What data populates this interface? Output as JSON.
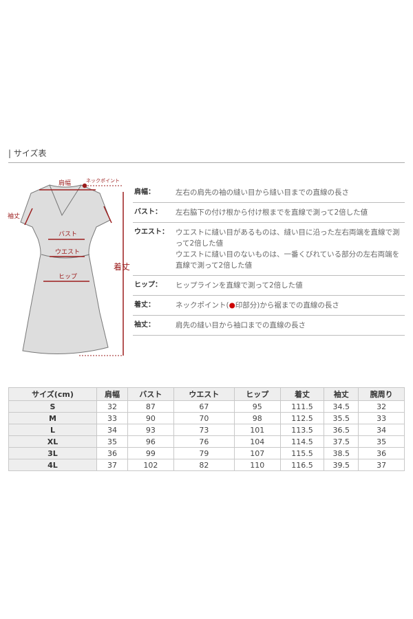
{
  "title": "| サイズ表",
  "diagram": {
    "shoulder": "肩幅",
    "neck_point": "ネックポイント",
    "sleeve": "袖丈",
    "bust": "バスト",
    "waist": "ウエスト",
    "hip": "ヒップ",
    "length": "着丈",
    "accent": "#9b1c1c"
  },
  "definitions": [
    {
      "key": "肩幅：",
      "value": "左右の肩先の袖の縫い目から縫い目までの直線の長さ"
    },
    {
      "key": "バスト：",
      "value": "左右脇下の付け根から付け根までを直線で測って2倍した値"
    },
    {
      "key": "ウエスト：",
      "value": "ウエストに縫い目があるものは、縫い目に沿った左右両端を直線で測って2倍した値",
      "value2": "ウエストに縫い目のないものは、一番くびれている部分の左右両端を直線で測って2倍した値"
    },
    {
      "key": "ヒップ：",
      "value": "ヒップラインを直線で測って2倍した値"
    },
    {
      "key": "着丈：",
      "value_a": "ネックポイント(",
      "value_b": "印部分)から裾までの直線の長さ"
    },
    {
      "key": "袖丈：",
      "value": "肩先の縫い目から袖口までの直線の長さ"
    }
  ],
  "table": {
    "headers": [
      "サイズ(cm)",
      "肩幅",
      "バスト",
      "ウエスト",
      "ヒップ",
      "着丈",
      "袖丈",
      "腕周り"
    ],
    "rows": [
      [
        "S",
        "32",
        "87",
        "67",
        "95",
        "111.5",
        "34.5",
        "32"
      ],
      [
        "M",
        "33",
        "90",
        "70",
        "98",
        "112.5",
        "35.5",
        "33"
      ],
      [
        "L",
        "34",
        "93",
        "73",
        "101",
        "113.5",
        "36.5",
        "34"
      ],
      [
        "XL",
        "35",
        "96",
        "76",
        "104",
        "114.5",
        "37.5",
        "35"
      ],
      [
        "3L",
        "36",
        "99",
        "79",
        "107",
        "115.5",
        "38.5",
        "36"
      ],
      [
        "4L",
        "37",
        "102",
        "82",
        "110",
        "116.5",
        "39.5",
        "37"
      ]
    ]
  }
}
